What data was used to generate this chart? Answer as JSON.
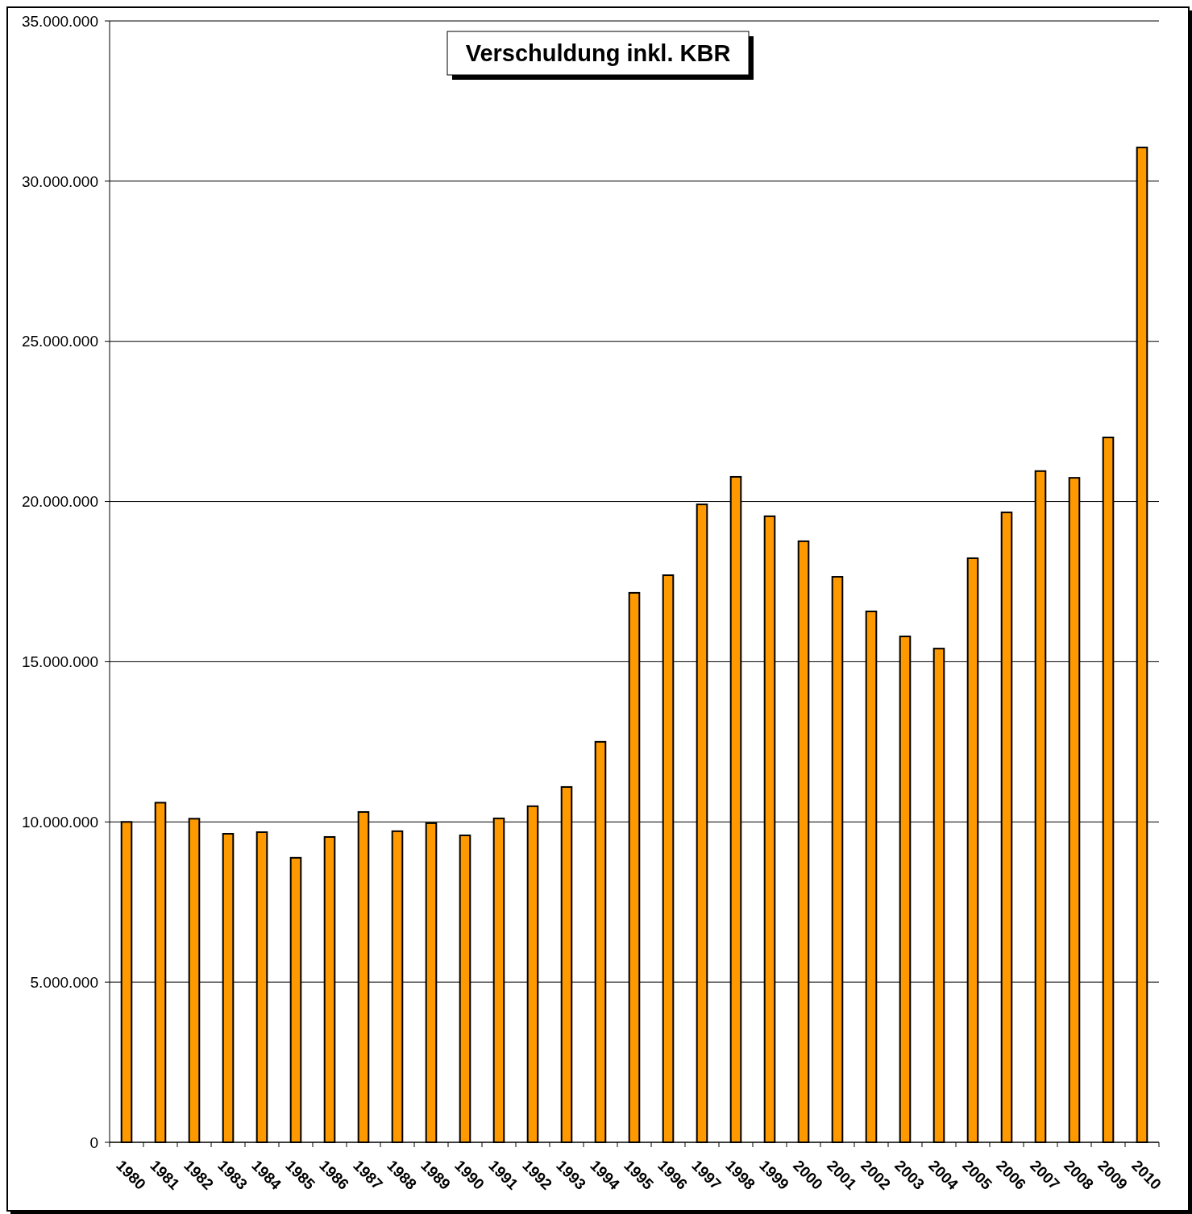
{
  "chart_data": {
    "type": "bar",
    "title": "Verschuldung inkl. KBR",
    "categories": [
      "1980",
      "1981",
      "1982",
      "1983",
      "1984",
      "1985",
      "1986",
      "1987",
      "1988",
      "1989",
      "1990",
      "1991",
      "1992",
      "1993",
      "1994",
      "1995",
      "1996",
      "1997",
      "1998",
      "1999",
      "2000",
      "2001",
      "2002",
      "2003",
      "2004",
      "2005",
      "2006",
      "2007",
      "2008",
      "2009",
      "2010"
    ],
    "values": [
      10000000,
      10600000,
      10100000,
      9630000,
      9680000,
      8880000,
      9530000,
      10310000,
      9710000,
      9960000,
      9580000,
      10110000,
      10490000,
      11090000,
      12500000,
      17150000,
      17700000,
      19910000,
      20770000,
      19540000,
      18760000,
      17650000,
      16570000,
      15790000,
      15410000,
      18230000,
      19660000,
      20950000,
      20740000,
      22000000,
      31050000
    ],
    "color": "#ff9900",
    "ylim": [
      0,
      35000000
    ],
    "yticks": [
      {
        "value": 0,
        "label": "0"
      },
      {
        "value": 5000000,
        "label": "5.000.000"
      },
      {
        "value": 10000000,
        "label": "10.000.000"
      },
      {
        "value": 15000000,
        "label": "15.000.000"
      },
      {
        "value": 20000000,
        "label": "20.000.000"
      },
      {
        "value": 25000000,
        "label": "25.000.000"
      },
      {
        "value": 30000000,
        "label": "30.000.000"
      },
      {
        "value": 35000000,
        "label": "35.000.000"
      }
    ],
    "grid": "y"
  }
}
